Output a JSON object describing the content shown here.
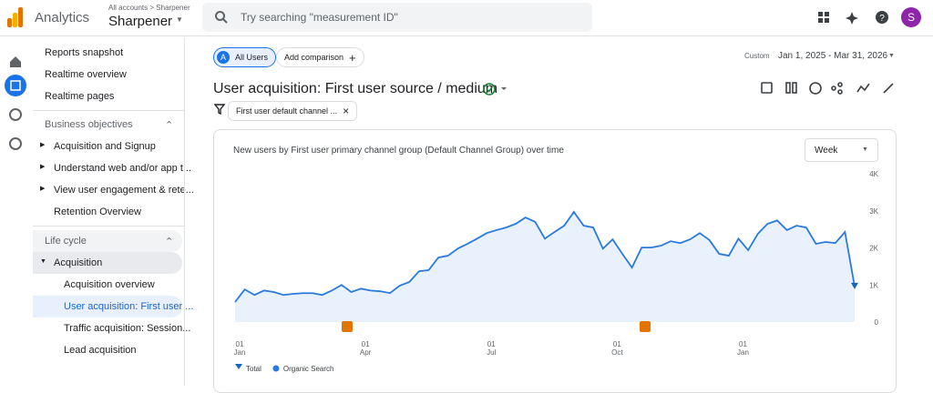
{
  "header": {
    "product": "Analytics",
    "breadcrumb": "All accounts > Sharpener",
    "account": "Sharpener",
    "search_placeholder": "Try searching \"measurement ID\"",
    "avatar": "S"
  },
  "sidebar": {
    "links": [
      "Reports snapshot",
      "Realtime overview",
      "Realtime pages"
    ],
    "sections": [
      {
        "title": "Business objectives",
        "items": [
          "Acquisition and Signup",
          "Understand web and/or app t...",
          "View user engagement & rete...",
          "Retention Overview"
        ]
      },
      {
        "title": "Life cycle",
        "items": [
          {
            "label": "Acquisition",
            "children": [
              "Acquisition overview",
              "User acquisition: First user ...",
              "Traffic acquisition: Session...",
              "Lead acquisition"
            ]
          }
        ]
      }
    ]
  },
  "toolbar": {
    "segment_letter": "A",
    "segment": "All Users",
    "add_comparison": "Add comparison",
    "date_kind": "Custom",
    "date_range": "Jan 1, 2025 - Mar 31, 2026"
  },
  "report": {
    "title": "User acquisition: First user source / medium",
    "filter": "First user default channel ...",
    "chart": {
      "type": "line",
      "title": "New users by First user primary channel group (Default Channel Group) over time",
      "interval": "Week",
      "categories": [
        {
          "day": "01",
          "month": "Jan"
        },
        null,
        null,
        null,
        null,
        null,
        null,
        null,
        null,
        null,
        null,
        null,
        null,
        {
          "day": "01",
          "month": "Apr"
        },
        null,
        null,
        null,
        null,
        null,
        null,
        null,
        null,
        null,
        null,
        null,
        null,
        {
          "day": "01",
          "month": "Jul"
        },
        null,
        null,
        null,
        null,
        null,
        null,
        null,
        null,
        null,
        null,
        null,
        null,
        {
          "day": "01",
          "month": "Oct"
        },
        null,
        null,
        null,
        null,
        null,
        null,
        null,
        null,
        null,
        null,
        null,
        null,
        {
          "day": "01",
          "month": "Jan"
        },
        null,
        null,
        null,
        null,
        null,
        null,
        null,
        null,
        null,
        null,
        null,
        null
      ],
      "series": [
        {
          "name": "Organic Search",
          "color": "#2a7ade",
          "values": [
            540,
            880,
            730,
            850,
            810,
            730,
            760,
            780,
            780,
            730,
            850,
            1000,
            810,
            900,
            850,
            830,
            780,
            980,
            1080,
            1370,
            1400,
            1740,
            1790,
            1980,
            2110,
            2250,
            2400,
            2480,
            2550,
            2650,
            2820,
            2700,
            2250,
            2430,
            2600,
            2970,
            2600,
            2550,
            1980,
            2230,
            1840,
            1470,
            2010,
            2010,
            2060,
            2180,
            2130,
            2230,
            2400,
            2210,
            1840,
            1790,
            2250,
            1940,
            2380,
            2650,
            2740,
            2480,
            2600,
            2550,
            2110,
            2160,
            2130,
            2430,
            960
          ]
        }
      ],
      "legend": [
        "Total",
        "Organic Search"
      ],
      "ylim": [
        0,
        4000
      ],
      "yticks": [
        0,
        {
          "value": 1000,
          "label": "1K"
        },
        {
          "value": 2000,
          "label": "2K"
        },
        {
          "value": 3000,
          "label": "3K"
        },
        {
          "value": 4000,
          "label": "4K"
        }
      ],
      "grid": false
    }
  }
}
